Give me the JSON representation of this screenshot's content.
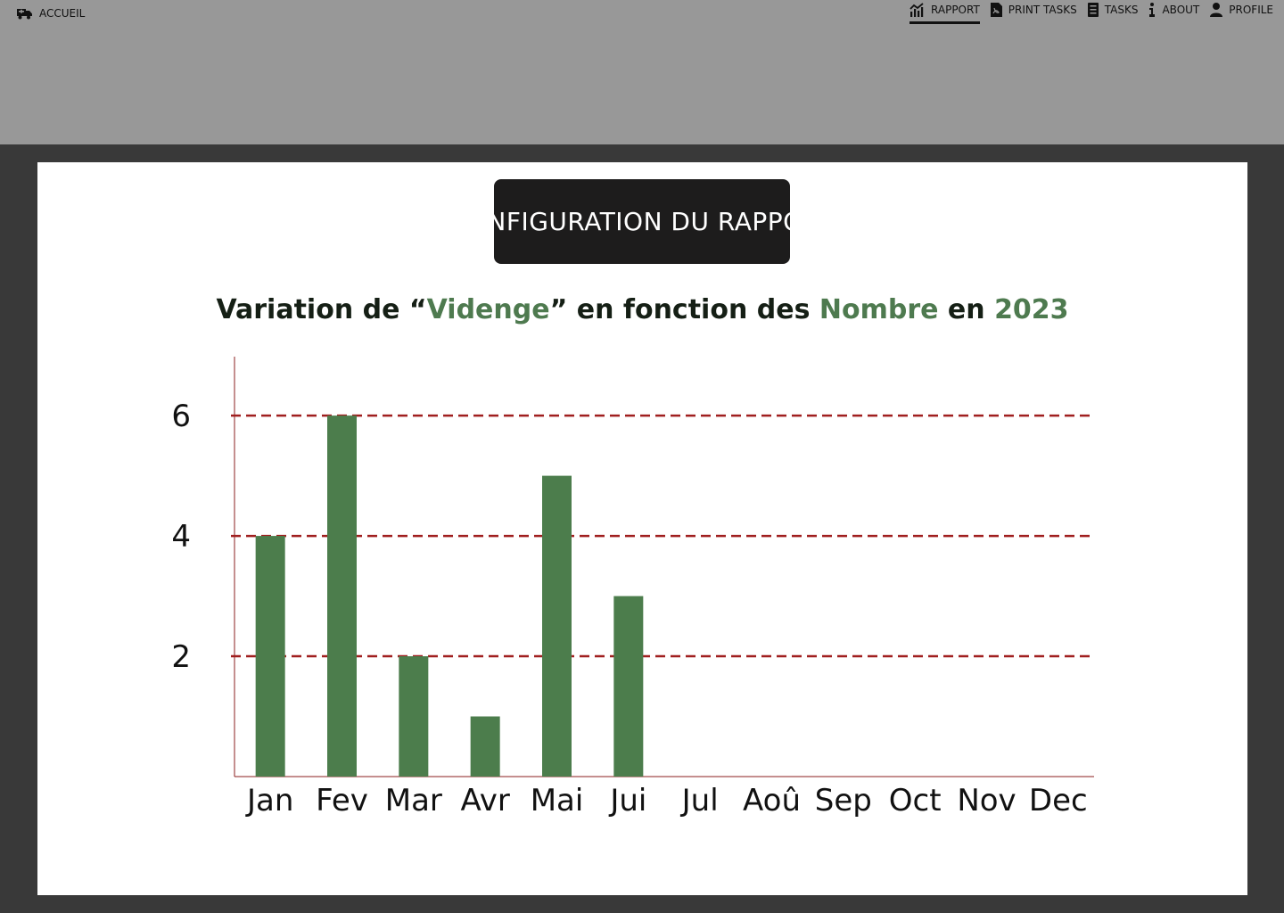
{
  "header": {
    "home_label": "ACCUEIL",
    "nav": [
      {
        "label": "RAPPORT",
        "icon": "chart-icon",
        "active": true
      },
      {
        "label": "PRINT TASKS",
        "icon": "pdf-file-icon",
        "active": false
      },
      {
        "label": "TASKS",
        "icon": "list-icon",
        "active": false
      },
      {
        "label": "ABOUT",
        "icon": "info-icon",
        "active": false
      },
      {
        "label": "PROFILE",
        "icon": "user-icon",
        "active": false
      }
    ]
  },
  "main": {
    "config_button_label": "CONFIGURATION DU RAPPORT"
  },
  "chart_data": {
    "type": "bar",
    "title_parts": [
      "Variation de “",
      "Videnge",
      "” en fonction des ",
      "Nombre",
      " en ",
      "2023"
    ],
    "categories": [
      "Jan",
      "Fev",
      "Mar",
      "Avr",
      "Mai",
      "Jui",
      "Jul",
      "Aoû",
      "Sep",
      "Oct",
      "Nov",
      "Dec"
    ],
    "values": [
      4,
      6,
      2,
      1,
      5,
      3,
      0,
      0,
      0,
      0,
      0,
      0
    ],
    "yticks": [
      "2",
      "4",
      "6"
    ],
    "ylim": [
      0,
      6.98
    ],
    "grid": "dashed",
    "colors": {
      "bar": "#4c7d4c",
      "grid": "#a01f1f",
      "axis": "#8b1f1f",
      "highlight": "#4e7a4f"
    }
  }
}
